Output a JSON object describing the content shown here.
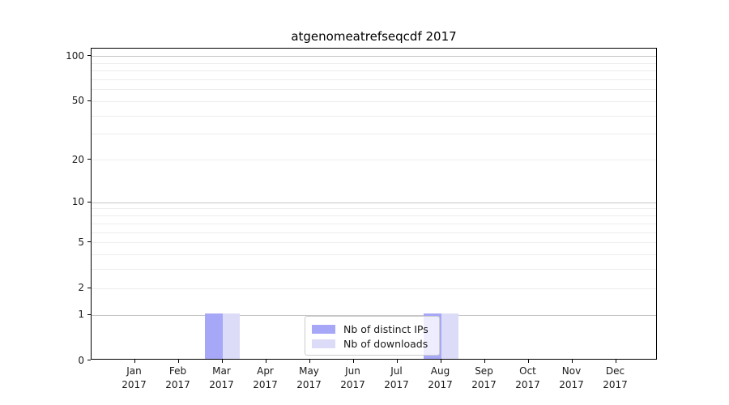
{
  "title": "atgenomeatrefseqcdf 2017",
  "chart_data": {
    "type": "bar",
    "title": "atgenomeatrefseqcdf 2017",
    "categories": [
      "Jan 2017",
      "Feb 2017",
      "Mar 2017",
      "Apr 2017",
      "May 2017",
      "Jun 2017",
      "Jul 2017",
      "Aug 2017",
      "Sep 2017",
      "Oct 2017",
      "Nov 2017",
      "Dec 2017"
    ],
    "series": [
      {
        "name": "Nb of distinct IPs",
        "color": "#a7a7f8",
        "values": [
          0,
          0,
          1,
          0,
          0,
          0,
          0,
          1,
          0,
          0,
          0,
          0
        ]
      },
      {
        "name": "Nb of downloads",
        "color": "#dcdcf8",
        "values": [
          0,
          0,
          1,
          0,
          0,
          0,
          0,
          1,
          0,
          0,
          0,
          0
        ]
      }
    ],
    "y_scale": "log10(1+v)",
    "ylim": [
      0,
      112
    ],
    "y_ticks": [
      0,
      1,
      2,
      5,
      10,
      20,
      50,
      100
    ],
    "y_major_gridlines": [
      1,
      10,
      100
    ],
    "y_minor_gridlines": [
      2,
      3,
      4,
      5,
      6,
      7,
      8,
      9,
      20,
      30,
      40,
      50,
      60,
      70,
      80,
      90
    ],
    "grid": "horizontal",
    "legend_position": "lower center",
    "xlabel": "",
    "ylabel": ""
  },
  "legend": {
    "items": [
      {
        "label": "Nb of distinct IPs",
        "color": "#a7a7f8"
      },
      {
        "label": "Nb of downloads",
        "color": "#dcdcf8"
      }
    ]
  },
  "colors": {
    "background": "#ffffff",
    "frame": "#000000",
    "major_grid": "#c6c6c6",
    "minor_grid": "#ededed",
    "tick_text": "#1a1a1a",
    "legend_border": "#cccccc"
  }
}
